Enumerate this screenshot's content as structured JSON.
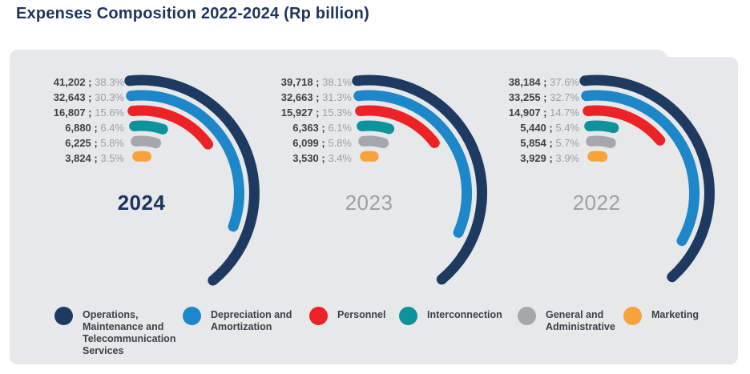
{
  "title": "Expenses Composition 2022-2024 (Rp billion)",
  "colors": {
    "panel_bg": "#e7e8ea",
    "title_text": "#1c355f",
    "value_text": "#3d434a",
    "percent_text": "#9ba0a5",
    "year_active": "#1c355f",
    "year_inactive": "#9ca0a5"
  },
  "chart_data": {
    "type": "radial-bar",
    "title": "Expenses Composition 2022-2024 (Rp billion)",
    "unit": "Rp billion",
    "separator": " ; ",
    "legend_position": "bottom",
    "legend": [
      {
        "key": "operations",
        "label": "Operations, Maintenance and Telecommunication Services",
        "color": "#1e3a61"
      },
      {
        "key": "depreciation",
        "label": "Depreciation and Amortization",
        "color": "#1d87c9"
      },
      {
        "key": "personnel",
        "label": "Personnel",
        "color": "#ec2227"
      },
      {
        "key": "interconnection",
        "label": "Interconnection",
        "color": "#0d939b"
      },
      {
        "key": "general",
        "label": "General and Administrative",
        "color": "#a5a7aa"
      },
      {
        "key": "marketing",
        "label": "Marketing",
        "color": "#f7a23b"
      }
    ],
    "years": [
      {
        "year": "2024",
        "active": true,
        "values": [
          41202,
          32643,
          16807,
          6880,
          6225,
          3824
        ],
        "value_labels": [
          "41,202",
          "32,643",
          "16,807",
          "6,880",
          "6,225",
          "3,824"
        ],
        "percents": [
          38.3,
          30.3,
          15.6,
          6.4,
          5.8,
          3.5
        ],
        "percent_labels": [
          "38.3%",
          "30.3%",
          "15.6%",
          "6.4%",
          "5.8%",
          "3.5%"
        ]
      },
      {
        "year": "2023",
        "active": false,
        "values": [
          39718,
          32663,
          15927,
          6363,
          6099,
          3530
        ],
        "value_labels": [
          "39,718",
          "32,663",
          "15,927",
          "6,363",
          "6,099",
          "3,530"
        ],
        "percents": [
          38.1,
          31.3,
          15.3,
          6.1,
          5.8,
          3.4
        ],
        "percent_labels": [
          "38.1%",
          "31.3%",
          "15.3%",
          "6.1%",
          "5.8%",
          "3.4%"
        ]
      },
      {
        "year": "2022",
        "active": false,
        "values": [
          38184,
          33255,
          14907,
          5440,
          5854,
          3929
        ],
        "value_labels": [
          "38,184",
          "33,255",
          "14,907",
          "5,440",
          "5,854",
          "3,929"
        ],
        "percents": [
          37.6,
          32.7,
          14.7,
          5.4,
          5.7,
          3.9
        ],
        "percent_labels": [
          "37.6%",
          "32.7%",
          "14.7%",
          "5.4%",
          "5.7%",
          "3.9%"
        ]
      }
    ]
  }
}
